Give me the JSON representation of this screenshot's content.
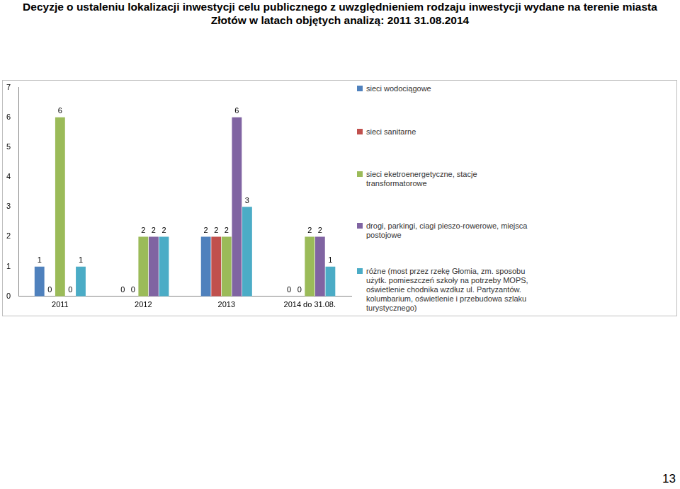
{
  "chart_data": {
    "type": "bar",
    "title": [
      "Decyzje o ustaleniu lokalizacji inwestycji celu publicznego z uwzględnieniem rodzaju inwestycji wydane na terenie miasta",
      "Złotów w latach objętych analizą: 2011 31.08.2014"
    ],
    "categories": [
      "2011",
      "2012",
      "2013",
      "2014 do 31.08."
    ],
    "series": [
      {
        "name": "sieci wodociągowe",
        "color": "#4f81bd",
        "values": [
          1,
          0,
          2,
          0
        ]
      },
      {
        "name": "sieci sanitarne",
        "color": "#c0504d",
        "values": [
          0,
          0,
          2,
          0
        ]
      },
      {
        "name": "sieci eketroenergetyczne, stacje transformatorowe",
        "color": "#9bbb59",
        "values": [
          6,
          2,
          2,
          2
        ]
      },
      {
        "name": "drogi, parkingi, ciagi pieszo-rowerowe, miejsca postojowe",
        "color": "#8064a2",
        "values": [
          0,
          2,
          6,
          2
        ]
      },
      {
        "name": "różne (most przez rzekę Głomia, zm. sposobu użytk. pomieszczeń szkoły na potrzeby MOPS, oświetlenie chodnika wzdłuz ul. Partyzantów. kolumbarium, oświetlenie i przebudowa szlaku turystycznego)",
        "color": "#4bacc6",
        "values": [
          1,
          2,
          3,
          1
        ]
      }
    ],
    "ylim": [
      0,
      7
    ],
    "yticks": [
      0,
      1,
      2,
      3,
      4,
      5,
      6,
      7
    ],
    "grid": false,
    "legend": "right",
    "data_labels": true
  },
  "page_number": "13"
}
